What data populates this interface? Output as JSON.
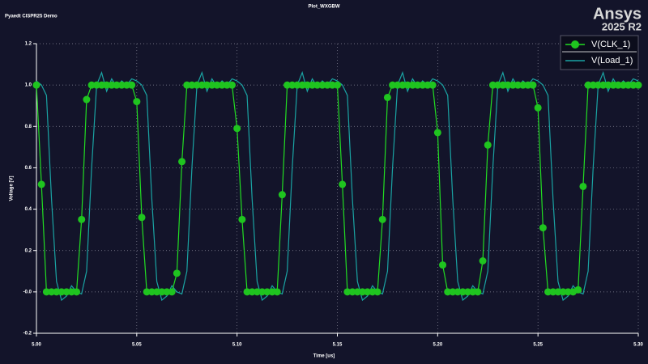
{
  "brand": {
    "name": "Ansys",
    "version": "2025 R2"
  },
  "chart_data": {
    "type": "line",
    "title": "Plot_WXGBW",
    "subtitle": "Pyaedt CISPR25 Demo",
    "x_label": "Time [us]",
    "y_label": "Voltage [V]",
    "x": [
      5,
      5.0025,
      5.005,
      5.0075,
      5.01,
      5.0125,
      5.015,
      5.0175,
      5.02,
      5.0225,
      5.025,
      5.0275,
      5.03,
      5.0325,
      5.035,
      5.0375,
      5.04,
      5.0425,
      5.045,
      5.0475,
      5.05,
      5.0525,
      5.055,
      5.0575,
      5.06,
      5.0625,
      5.065,
      5.0675,
      5.07,
      5.0725,
      5.075,
      5.0775,
      5.08,
      5.0825,
      5.085,
      5.0875,
      5.09,
      5.0925,
      5.095,
      5.0975,
      5.1,
      5.1025,
      5.105,
      5.1075,
      5.11,
      5.1125,
      5.115,
      5.1175,
      5.12,
      5.1225,
      5.125,
      5.1275,
      5.13,
      5.1325,
      5.135,
      5.1375,
      5.14,
      5.1425,
      5.145,
      5.1475,
      5.15,
      5.1525,
      5.155,
      5.1575,
      5.16,
      5.1625,
      5.165,
      5.1675,
      5.17,
      5.1725,
      5.175,
      5.1775,
      5.18,
      5.1825,
      5.185,
      5.1875,
      5.19,
      5.1925,
      5.195,
      5.1975,
      5.2,
      5.2025,
      5.205,
      5.2075,
      5.21,
      5.2125,
      5.215,
      5.2175,
      5.22,
      5.2225,
      5.225,
      5.2275,
      5.23,
      5.2325,
      5.235,
      5.2375,
      5.24,
      5.2425,
      5.245,
      5.2475,
      5.25,
      5.2525,
      5.255,
      5.2575,
      5.26,
      5.2625,
      5.265,
      5.2675,
      5.27,
      5.2725,
      5.275,
      5.2775,
      5.28,
      5.2825,
      5.285,
      5.2875,
      5.29,
      5.2925,
      5.295,
      5.2975,
      5.3
    ],
    "series": [
      {
        "name": "V(CLK_1)",
        "color": "#22dd22",
        "marker": "circle",
        "marker_color": "#1fc41f",
        "values": [
          1,
          0.52,
          0,
          0,
          0,
          0,
          0,
          0,
          0,
          0.35,
          0.93,
          1,
          1,
          1,
          1,
          1,
          1,
          1,
          1,
          1,
          0.92,
          0.36,
          0,
          0,
          0,
          0,
          0,
          0,
          0.09,
          0.63,
          1,
          1,
          1,
          1,
          1,
          1,
          1,
          1,
          1,
          1,
          0.79,
          0.35,
          0,
          0,
          0,
          0,
          0,
          0,
          0,
          0.47,
          1,
          1,
          1,
          1,
          1,
          1,
          1,
          1,
          1,
          1,
          1,
          0.52,
          0,
          0,
          0,
          0,
          0,
          0,
          0,
          0.35,
          0.94,
          1,
          1,
          1,
          1,
          1,
          1,
          1,
          1,
          1,
          0.77,
          0.13,
          0,
          0,
          0,
          0,
          0,
          0,
          0,
          0.15,
          0.71,
          1,
          1,
          1,
          1,
          1,
          1,
          1,
          1,
          1,
          0.89,
          0.31,
          0,
          0,
          0,
          0,
          0,
          0,
          0.01,
          0.51,
          1,
          1,
          1,
          1,
          1,
          1,
          1,
          1,
          1,
          1,
          1
        ]
      },
      {
        "name": "V(Load_1)",
        "color": "#1aa3a3",
        "values": [
          1.02,
          1,
          0.95,
          0.45,
          0.05,
          -0.04,
          -0.02,
          0.03,
          0,
          -0.01,
          0.1,
          0.6,
          1,
          1.06,
          0.97,
          1.03,
          0.99,
          1.02,
          1,
          1.03,
          1.02,
          1,
          0.95,
          0.45,
          0.05,
          -0.04,
          -0.02,
          0.03,
          0,
          -0.01,
          0.1,
          0.6,
          1,
          1.06,
          0.97,
          1.03,
          0.99,
          1.02,
          1,
          1.03,
          1.02,
          1,
          0.95,
          0.45,
          0.05,
          -0.04,
          -0.02,
          0.03,
          0,
          -0.01,
          0.1,
          0.6,
          1,
          1.06,
          0.97,
          1.03,
          0.99,
          1.02,
          1,
          1.03,
          1.02,
          1,
          0.95,
          0.45,
          0.05,
          -0.04,
          -0.02,
          0.03,
          0,
          -0.01,
          0.1,
          0.6,
          1,
          1.06,
          0.97,
          1.03,
          0.99,
          1.02,
          1,
          1.03,
          1.02,
          1,
          0.95,
          0.45,
          0.05,
          -0.04,
          -0.02,
          0.03,
          0,
          -0.01,
          0.1,
          0.6,
          1,
          1.06,
          0.97,
          1.03,
          0.99,
          1.02,
          1,
          1.03,
          1.02,
          1,
          0.95,
          0.45,
          0.05,
          -0.04,
          -0.02,
          0.03,
          0,
          -0.01,
          0.1,
          0.6,
          1,
          1.06,
          0.97,
          1.03,
          0.99,
          1.02,
          1,
          1.03,
          1.02
        ]
      }
    ],
    "xlim": [
      5,
      5.3
    ],
    "xticks": [
      {
        "value": 5,
        "label": "5.00"
      },
      5.05,
      {
        "value": 5.1,
        "label": "5.10"
      },
      5.15,
      {
        "value": 5.2,
        "label": "5.20"
      },
      5.25,
      {
        "value": 5.3,
        "label": "5.30"
      }
    ],
    "ylim": [
      -0.2,
      1.2
    ],
    "yticks": [
      -0.2,
      {
        "value": 0,
        "label": "-0.0"
      },
      0.2,
      0.4,
      0.6,
      0.8,
      {
        "value": 1,
        "label": "1.0"
      },
      1.2
    ],
    "grid": true,
    "legend": "upper right"
  }
}
